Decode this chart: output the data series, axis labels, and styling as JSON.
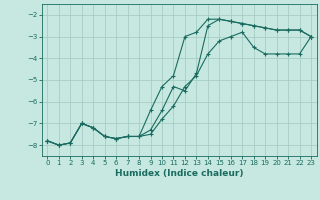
{
  "xlabel": "Humidex (Indice chaleur)",
  "ylabel": "",
  "background_color": "#c6e8e0",
  "grid_color": "#a0c8be",
  "line_color": "#1a6b60",
  "marker": "+",
  "xlim": [
    -0.5,
    23.5
  ],
  "ylim": [
    -8.5,
    -1.5
  ],
  "xticks": [
    0,
    1,
    2,
    3,
    4,
    5,
    6,
    7,
    8,
    9,
    10,
    11,
    12,
    13,
    14,
    15,
    16,
    17,
    18,
    19,
    20,
    21,
    22,
    23
  ],
  "yticks": [
    -8,
    -7,
    -6,
    -5,
    -4,
    -3,
    -2
  ],
  "series1_x": [
    0,
    1,
    2,
    3,
    4,
    5,
    6,
    7,
    8,
    9,
    10,
    11,
    12,
    13,
    14,
    15,
    16,
    17,
    18,
    19,
    20,
    21,
    22,
    23
  ],
  "series1_y": [
    -7.8,
    -8.0,
    -7.9,
    -7.0,
    -7.2,
    -7.6,
    -7.7,
    -7.6,
    -7.6,
    -7.3,
    -6.4,
    -5.3,
    -5.5,
    -4.7,
    -2.5,
    -2.2,
    -2.3,
    -2.4,
    -2.5,
    -2.6,
    -2.7,
    -2.7,
    -2.7,
    -3.0
  ],
  "series2_x": [
    0,
    1,
    2,
    3,
    4,
    5,
    6,
    7,
    8,
    9,
    10,
    11,
    12,
    13,
    14,
    15,
    16,
    17,
    18,
    19,
    20,
    21,
    22,
    23
  ],
  "series2_y": [
    -7.8,
    -8.0,
    -7.9,
    -7.0,
    -7.2,
    -7.6,
    -7.7,
    -7.6,
    -7.6,
    -6.4,
    -5.3,
    -4.8,
    -3.0,
    -2.8,
    -2.2,
    -2.2,
    -2.3,
    -2.4,
    -2.5,
    -2.6,
    -2.7,
    -2.7,
    -2.7,
    -3.0
  ],
  "series3_x": [
    0,
    1,
    2,
    3,
    4,
    5,
    6,
    7,
    8,
    9,
    10,
    11,
    12,
    13,
    14,
    15,
    16,
    17,
    18,
    19,
    20,
    21,
    22,
    23
  ],
  "series3_y": [
    -7.8,
    -8.0,
    -7.9,
    -7.0,
    -7.2,
    -7.6,
    -7.7,
    -7.6,
    -7.6,
    -7.5,
    -6.8,
    -6.2,
    -5.3,
    -4.8,
    -3.8,
    -3.2,
    -3.0,
    -2.8,
    -3.5,
    -3.8,
    -3.8,
    -3.8,
    -3.8,
    -3.0
  ]
}
